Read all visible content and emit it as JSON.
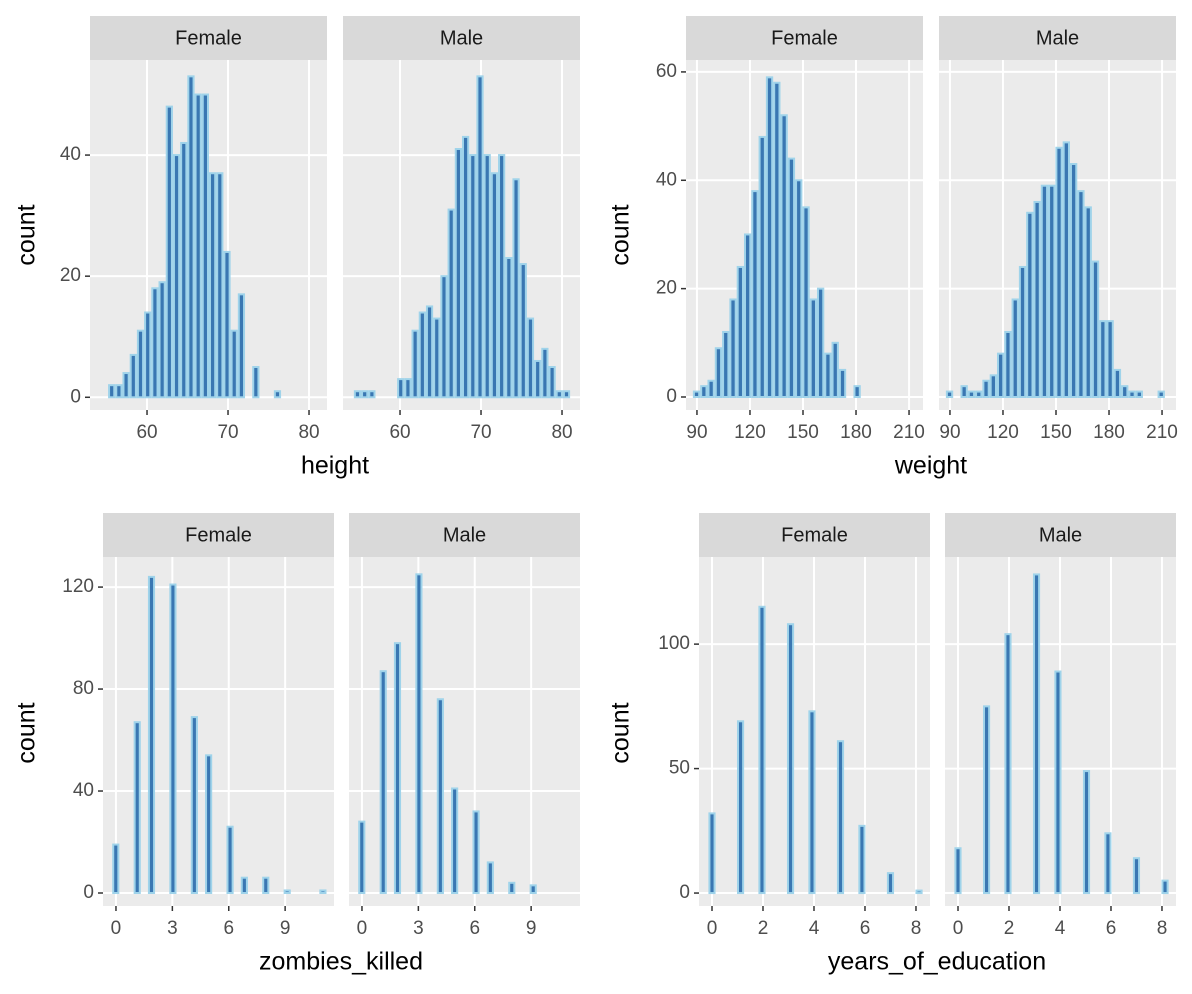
{
  "chart_data": [
    {
      "type": "histogram",
      "x_label": "height",
      "y_label": "count",
      "fill": "#3a77b2",
      "edge_color": "#9fd3ea",
      "xlim": [
        52.96,
        82.22
      ],
      "ylim": [
        -2.1,
        55.7
      ],
      "xticks": [
        60,
        70,
        80
      ],
      "yticks": [
        0,
        20,
        40
      ],
      "grid": true,
      "bins": [
        54.3,
        55.19,
        56.08,
        56.97,
        57.86,
        58.75,
        59.64,
        60.53,
        61.42,
        62.31,
        63.2,
        64.09,
        64.98,
        65.87,
        66.76,
        67.65,
        68.54,
        69.43,
        70.32,
        71.21,
        72.1,
        72.99,
        73.88,
        74.77,
        75.66,
        76.55,
        77.44,
        78.33,
        79.22,
        80.11,
        81.0
      ],
      "facets": [
        {
          "name": "Female",
          "values": [
            0,
            2,
            2,
            4,
            7,
            11,
            14,
            18,
            19,
            48,
            40,
            42,
            53,
            50,
            50,
            37,
            37,
            24,
            11,
            17,
            0,
            5,
            0,
            0,
            1,
            0,
            0,
            0,
            0,
            0
          ]
        },
        {
          "name": "Male",
          "values": [
            1,
            1,
            1,
            0,
            0,
            0,
            3,
            3,
            11,
            14,
            15,
            13,
            20,
            31,
            41,
            43,
            40,
            53,
            40,
            37,
            40,
            23,
            36,
            22,
            13,
            6,
            8,
            5,
            1,
            1
          ]
        }
      ]
    },
    {
      "type": "histogram",
      "x_label": "weight",
      "y_label": "count",
      "fill": "#3a77b2",
      "edge_color": "#9fd3ea",
      "xlim": [
        83.8,
        217.9
      ],
      "ylim": [
        -2.4,
        62.2
      ],
      "xticks": [
        90,
        120,
        150,
        180,
        210
      ],
      "yticks": [
        0,
        20,
        40,
        60
      ],
      "grid": true,
      "bins": [
        87.7,
        91.83,
        95.96,
        100.09,
        104.22,
        108.35,
        112.48,
        116.61,
        120.74,
        124.87,
        129.0,
        133.13,
        137.26,
        141.39,
        145.52,
        149.65,
        153.78,
        157.91,
        162.04,
        166.17,
        170.3,
        174.43,
        178.56,
        182.69,
        186.82,
        190.95,
        195.08,
        199.21,
        203.34,
        207.47,
        211.6
      ],
      "facets": [
        {
          "name": "Female",
          "values": [
            1,
            2,
            3,
            9,
            12,
            18,
            24,
            30,
            38,
            48,
            59,
            58,
            52,
            44,
            40,
            35,
            18,
            20,
            8,
            10,
            5,
            0,
            2,
            0,
            0,
            0,
            0,
            0,
            0,
            0
          ]
        },
        {
          "name": "Male",
          "values": [
            1,
            0,
            2,
            1,
            1,
            3,
            4,
            8,
            12,
            18,
            24,
            34,
            36,
            39,
            39,
            46,
            47,
            43,
            38,
            35,
            25,
            14,
            14,
            5,
            2,
            1,
            1,
            0,
            0,
            1
          ]
        }
      ]
    },
    {
      "type": "histogram",
      "x_label": "zombies_killed",
      "y_label": "count",
      "fill": "#3a77b2",
      "edge_color": "#9fd3ea",
      "xlim": [
        -0.69,
        11.6
      ],
      "ylim": [
        -5.1,
        131.8
      ],
      "xticks": [
        0,
        3,
        6,
        9
      ],
      "yticks": [
        0,
        40,
        80,
        120
      ],
      "grid": true,
      "bins": [
        -0.2,
        0.18,
        0.56,
        0.94,
        1.32,
        1.7,
        2.08,
        2.46,
        2.84,
        3.22,
        3.6,
        3.98,
        4.36,
        4.74,
        5.12,
        5.5,
        5.88,
        6.26,
        6.64,
        7.02,
        7.4,
        7.78,
        8.16,
        8.54,
        8.92,
        9.3,
        9.68,
        10.06,
        10.44,
        10.82,
        11.2
      ],
      "facets": [
        {
          "name": "Female",
          "values": [
            19,
            0,
            0,
            67,
            0,
            124,
            0,
            0,
            121,
            0,
            0,
            69,
            0,
            54,
            0,
            0,
            26,
            0,
            6,
            0,
            0,
            6,
            0,
            0,
            1,
            0,
            0,
            0,
            0,
            1
          ]
        },
        {
          "name": "Male",
          "values": [
            28,
            0,
            0,
            87,
            0,
            98,
            0,
            0,
            125,
            0,
            0,
            76,
            0,
            41,
            0,
            0,
            32,
            0,
            12,
            0,
            0,
            4,
            0,
            0,
            3,
            0,
            0,
            0,
            0,
            0
          ]
        }
      ]
    },
    {
      "type": "histogram",
      "x_label": "years_of_education",
      "y_label": "count",
      "fill": "#3a77b2",
      "edge_color": "#9fd3ea",
      "xlim": [
        -0.51,
        8.55
      ],
      "ylim": [
        -5.2,
        135
      ],
      "xticks": [
        0,
        2,
        4,
        6,
        8
      ],
      "yticks": [
        0,
        50,
        100
      ],
      "grid": true,
      "bins": [
        -0.14,
        0.14,
        0.42,
        0.7,
        0.98,
        1.26,
        1.54,
        1.82,
        2.1,
        2.38,
        2.66,
        2.94,
        3.22,
        3.5,
        3.78,
        4.06,
        4.34,
        4.62,
        4.9,
        5.18,
        5.46,
        5.74,
        6.02,
        6.3,
        6.58,
        6.86,
        7.14,
        7.42,
        7.7,
        7.98,
        8.26
      ],
      "facets": [
        {
          "name": "Female",
          "values": [
            32,
            0,
            0,
            0,
            69,
            0,
            0,
            115,
            0,
            0,
            0,
            108,
            0,
            0,
            73,
            0,
            0,
            0,
            61,
            0,
            0,
            27,
            0,
            0,
            0,
            8,
            0,
            0,
            0,
            1
          ]
        },
        {
          "name": "Male",
          "values": [
            18,
            0,
            0,
            0,
            75,
            0,
            0,
            104,
            0,
            0,
            0,
            128,
            0,
            0,
            89,
            0,
            0,
            0,
            49,
            0,
            0,
            24,
            0,
            0,
            0,
            14,
            0,
            0,
            0,
            5
          ]
        }
      ]
    }
  ]
}
